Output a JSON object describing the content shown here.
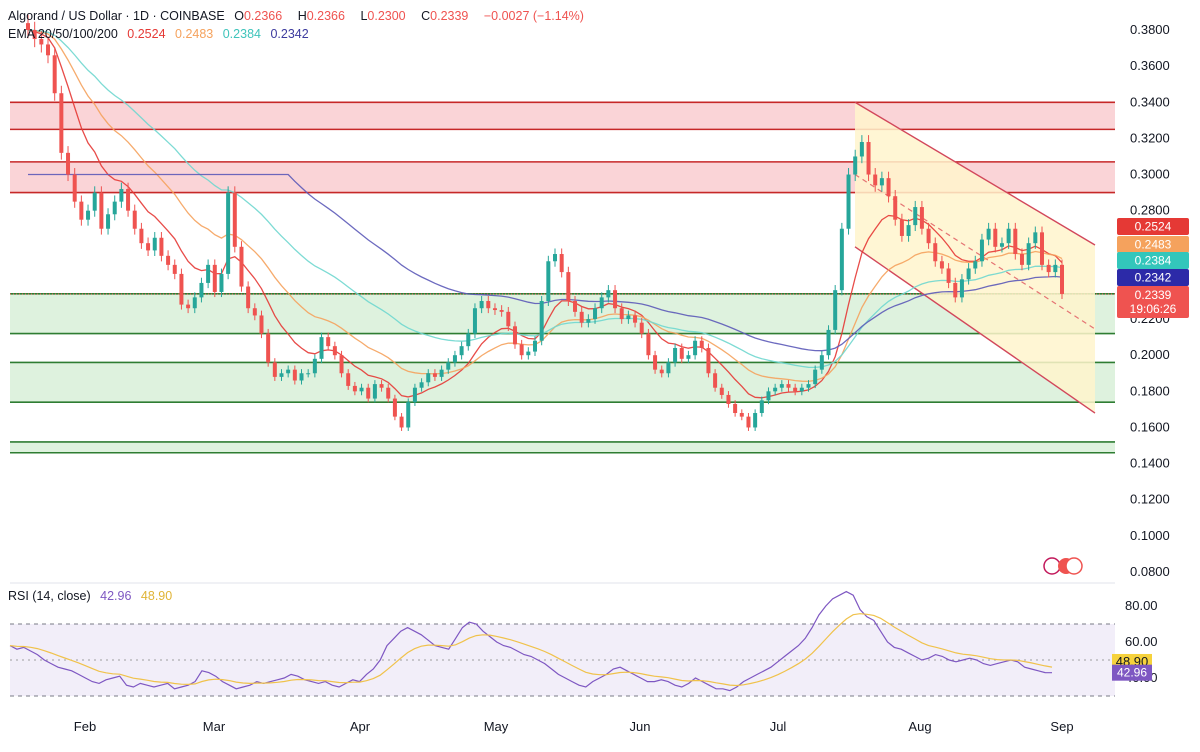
{
  "header": {
    "symbol": "Algorand / US Dollar · 1D · COINBASE",
    "o_label": "O",
    "o_value": "0.2366",
    "h_label": "H",
    "h_value": "0.2366",
    "l_label": "L",
    "l_value": "0.2300",
    "c_label": "C",
    "c_value": "0.2339",
    "change": "−0.0027 (−1.14%)",
    "ema_label": "EMA 20/50/100/200",
    "ema20": "0.2524",
    "ema50": "0.2483",
    "ema100": "0.2384",
    "ema200": "0.2342"
  },
  "rsi_header": {
    "label": "RSI (14, close)",
    "rsi_value": "42.96",
    "ma_value": "48.90"
  },
  "price_tags": {
    "ema20": "0.2524",
    "ema50": "0.2483",
    "ema100": "0.2384",
    "ema200": "0.2342",
    "last": "0.2339",
    "countdown": "19:06:26"
  },
  "colors": {
    "up": "#26a69a",
    "down": "#ef5350",
    "ema20": "#e53935",
    "ema50": "#f5a25d",
    "ema100": "#6fd7cf",
    "ema200": "#5c5ab8",
    "rsi": "#7e57c2",
    "rsi_ma": "#f0c24b",
    "resistance_fill": "#f8c6c9",
    "support_fill": "#d6efd6",
    "channel_fill": "#fff5cc"
  },
  "chart_data": [
    {
      "type": "candlestick",
      "title": "Algorand / US Dollar · 1D · COINBASE",
      "y_ticks": [
        "0.3800",
        "0.3600",
        "0.3400",
        "0.3200",
        "0.3000",
        "0.2800",
        "0.2600",
        "0.2400",
        "0.2200",
        "0.2000",
        "0.1800",
        "0.1600",
        "0.1400",
        "0.1200",
        "0.1000",
        "0.0800"
      ],
      "x_ticks": [
        "Feb",
        "Mar",
        "Apr",
        "May",
        "Jun",
        "Jul",
        "Aug",
        "Sep"
      ],
      "ylim": [
        0.074,
        0.392
      ],
      "resistance_zones": [
        [
          0.325,
          0.34
        ],
        [
          0.29,
          0.307
        ]
      ],
      "support_zones": [
        [
          0.212,
          0.234
        ],
        [
          0.174,
          0.196
        ],
        [
          0.146,
          0.152
        ]
      ],
      "descending_channel": {
        "upper": [
          [
            0.34,
            "Jul 17"
          ],
          [
            0.261,
            "Sep 1"
          ]
        ],
        "lower": [
          [
            0.26,
            "Jul 17"
          ],
          [
            0.168,
            "Sep 1"
          ]
        ]
      },
      "close_approx": [
        0.38,
        0.375,
        0.372,
        0.366,
        0.345,
        0.312,
        0.3,
        0.285,
        0.275,
        0.28,
        0.29,
        0.27,
        0.278,
        0.285,
        0.292,
        0.28,
        0.27,
        0.262,
        0.258,
        0.265,
        0.255,
        0.25,
        0.245,
        0.228,
        0.226,
        0.232,
        0.24,
        0.25,
        0.235,
        0.245,
        0.29,
        0.26,
        0.238,
        0.226,
        0.222,
        0.212,
        0.196,
        0.188,
        0.19,
        0.192,
        0.186,
        0.19,
        0.19,
        0.198,
        0.21,
        0.205,
        0.2,
        0.19,
        0.183,
        0.18,
        0.182,
        0.176,
        0.184,
        0.182,
        0.176,
        0.166,
        0.16,
        0.174,
        0.182,
        0.185,
        0.19,
        0.188,
        0.192,
        0.196,
        0.2,
        0.205,
        0.212,
        0.226,
        0.23,
        0.226,
        0.225,
        0.224,
        0.216,
        0.206,
        0.2,
        0.202,
        0.208,
        0.23,
        0.252,
        0.256,
        0.246,
        0.23,
        0.224,
        0.218,
        0.22,
        0.226,
        0.232,
        0.236,
        0.226,
        0.22,
        0.222,
        0.218,
        0.212,
        0.2,
        0.192,
        0.19,
        0.196,
        0.204,
        0.198,
        0.2,
        0.208,
        0.204,
        0.19,
        0.182,
        0.178,
        0.173,
        0.168,
        0.166,
        0.16,
        0.168,
        0.175,
        0.18,
        0.182,
        0.184,
        0.182,
        0.18,
        0.182,
        0.184,
        0.192,
        0.2,
        0.214,
        0.236,
        0.27,
        0.3,
        0.31,
        0.318,
        0.3,
        0.294,
        0.298,
        0.288,
        0.275,
        0.266,
        0.272,
        0.282,
        0.27,
        0.262,
        0.252,
        0.248,
        0.24,
        0.232,
        0.242,
        0.248,
        0.252,
        0.264,
        0.27,
        0.26,
        0.262,
        0.27,
        0.256,
        0.25,
        0.262,
        0.268,
        0.25,
        0.246,
        0.25,
        0.2339
      ]
    },
    {
      "type": "line",
      "title": "RSI (14, close)",
      "y_ticks": [
        "80.00",
        "60.00",
        "40.00"
      ],
      "bands": [
        30,
        70
      ],
      "series": [
        {
          "name": "RSI",
          "value": "42.96"
        },
        {
          "name": "MA",
          "value": "48.90"
        }
      ],
      "rsi_approx": [
        58,
        56,
        57,
        55,
        53,
        50,
        48,
        46,
        45,
        44,
        42,
        40,
        38,
        37,
        39,
        40,
        41,
        36,
        35,
        37,
        36,
        35,
        36,
        37,
        34,
        35,
        36,
        38,
        44,
        43,
        41,
        38,
        36,
        34,
        35,
        36,
        38,
        37,
        38,
        39,
        40,
        42,
        41,
        39,
        38,
        37,
        38,
        36,
        35,
        37,
        39,
        38,
        42,
        45,
        50,
        58,
        62,
        66,
        68,
        66,
        64,
        61,
        58,
        57,
        56,
        62,
        68,
        71,
        70,
        66,
        63,
        60,
        58,
        57,
        55,
        53,
        52,
        50,
        48,
        45,
        42,
        40,
        38,
        36,
        35,
        38,
        40,
        42,
        45,
        46,
        44,
        42,
        40,
        38,
        38,
        39,
        38,
        36,
        35,
        37,
        40,
        38,
        36,
        34,
        34,
        33,
        35,
        38,
        40,
        42,
        44,
        46,
        49,
        52,
        55,
        58,
        62,
        68,
        75,
        80,
        84,
        86,
        88,
        86,
        78,
        74,
        72,
        66,
        60,
        57,
        56,
        54,
        52,
        50,
        51,
        53,
        52,
        50,
        49,
        50,
        51,
        50,
        48,
        47,
        48,
        49,
        50,
        49,
        46,
        45,
        44,
        43,
        42.96
      ]
    }
  ]
}
